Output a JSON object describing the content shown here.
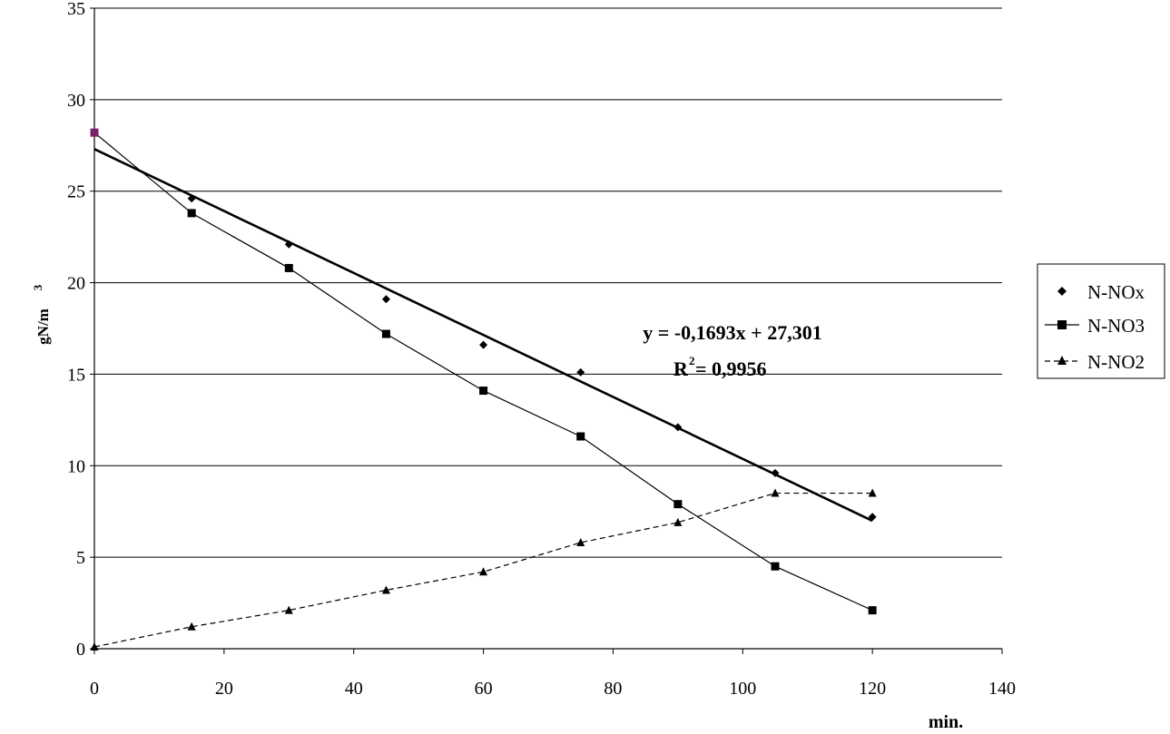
{
  "chart_data": {
    "type": "scatter",
    "xlabel": "min.",
    "ylabel": "gN/m",
    "ylabel_sup": "3",
    "xlim": [
      0,
      140
    ],
    "ylim": [
      0,
      35
    ],
    "x_ticks": [
      "0",
      "20",
      "40",
      "60",
      "80",
      "100",
      "120",
      "140"
    ],
    "y_ticks": [
      "0",
      "5",
      "10",
      "15",
      "20",
      "25",
      "30",
      "35"
    ],
    "grid": "horizontal",
    "legend_position": "right",
    "x": [
      0,
      15,
      30,
      45,
      60,
      75,
      90,
      105,
      120
    ],
    "series": [
      {
        "name": "N-NOx",
        "marker": "diamond",
        "line": "none",
        "values": [
          28.2,
          24.6,
          22.1,
          19.1,
          16.6,
          15.1,
          12.1,
          9.6,
          7.2
        ]
      },
      {
        "name": "N-NO3",
        "marker": "square",
        "line": "solid",
        "values": [
          28.2,
          23.8,
          20.8,
          17.2,
          14.1,
          11.6,
          7.9,
          4.5,
          2.1
        ]
      },
      {
        "name": "N-NO2",
        "marker": "triangle",
        "line": "dashed",
        "values": [
          0.1,
          1.2,
          2.1,
          3.2,
          4.2,
          5.8,
          6.9,
          8.5,
          8.5
        ]
      }
    ],
    "trendline": {
      "series": "N-NOx",
      "slope": -0.1693,
      "intercept": 27.301,
      "x_range": [
        0,
        120
      ],
      "equation_text": "y = -0,1693x + 27,301",
      "r2_prefix": "R",
      "r2_sup": "2",
      "r2_suffix": " = 0,9956"
    },
    "highlight_color": "#7a1f6e"
  }
}
